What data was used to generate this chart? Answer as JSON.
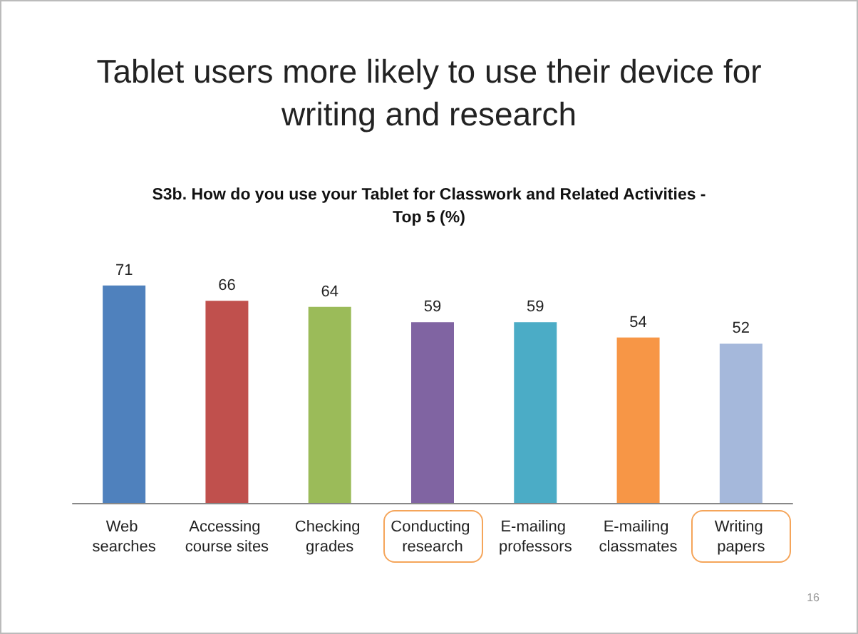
{
  "chart_data": {
    "type": "bar",
    "title": "Tablet users more likely to use their device for writing and research",
    "subtitle": "S3b.  How do you use your Tablet for Classwork and Related Activities - Top 5 (%)",
    "categories": [
      "Web searches",
      "Accessing course sites",
      "Checking grades",
      "Conducting research",
      "E-mailing professors",
      "E-mailing classmates",
      "Writing papers"
    ],
    "values": [
      71,
      66,
      64,
      59,
      59,
      54,
      52
    ],
    "colors": [
      "#4f81bd",
      "#c0504d",
      "#9bbb59",
      "#8064a2",
      "#4bacc6",
      "#f79646",
      "#a5b8db"
    ],
    "data_labels": true,
    "tick_labels": "x",
    "annotations": [
      "16"
    ]
  }
}
